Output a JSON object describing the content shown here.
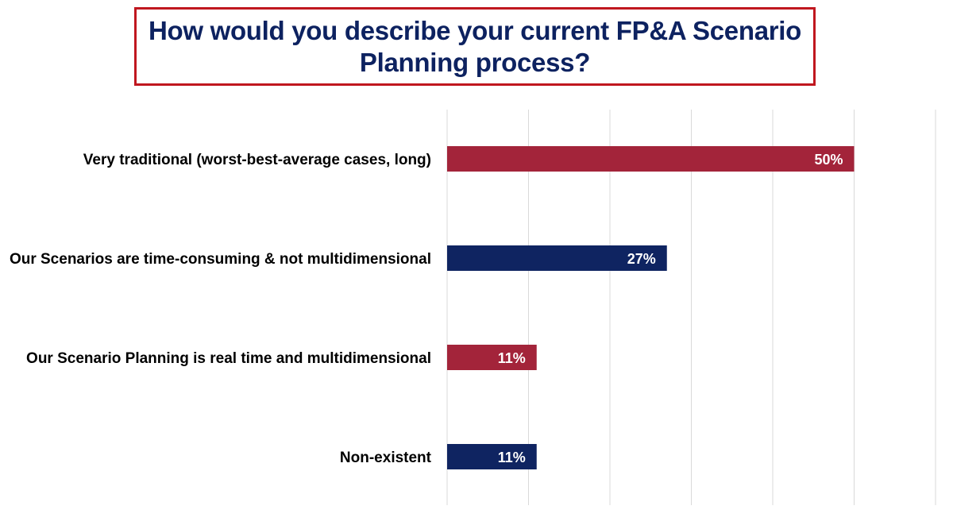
{
  "chart_data": {
    "type": "bar",
    "orientation": "horizontal",
    "title": "How would you describe your current FP&A Scenario Planning process?",
    "categories": [
      "Very traditional (worst-best-average cases, long)",
      "Our Scenarios are time-consuming & not multidimensional",
      "Our Scenario Planning is real time and multidimensional",
      "Non-existent"
    ],
    "values": [
      50,
      27,
      11,
      11
    ],
    "value_labels": [
      "50%",
      "27%",
      "11%",
      "11%"
    ],
    "unit": "%",
    "xlim": [
      0,
      60
    ],
    "grid": true,
    "bar_colors": [
      "#a3243a",
      "#0f2461",
      "#a3243a",
      "#0f2461"
    ],
    "title_color": "#0d2260",
    "title_border_color": "#c0171f"
  }
}
